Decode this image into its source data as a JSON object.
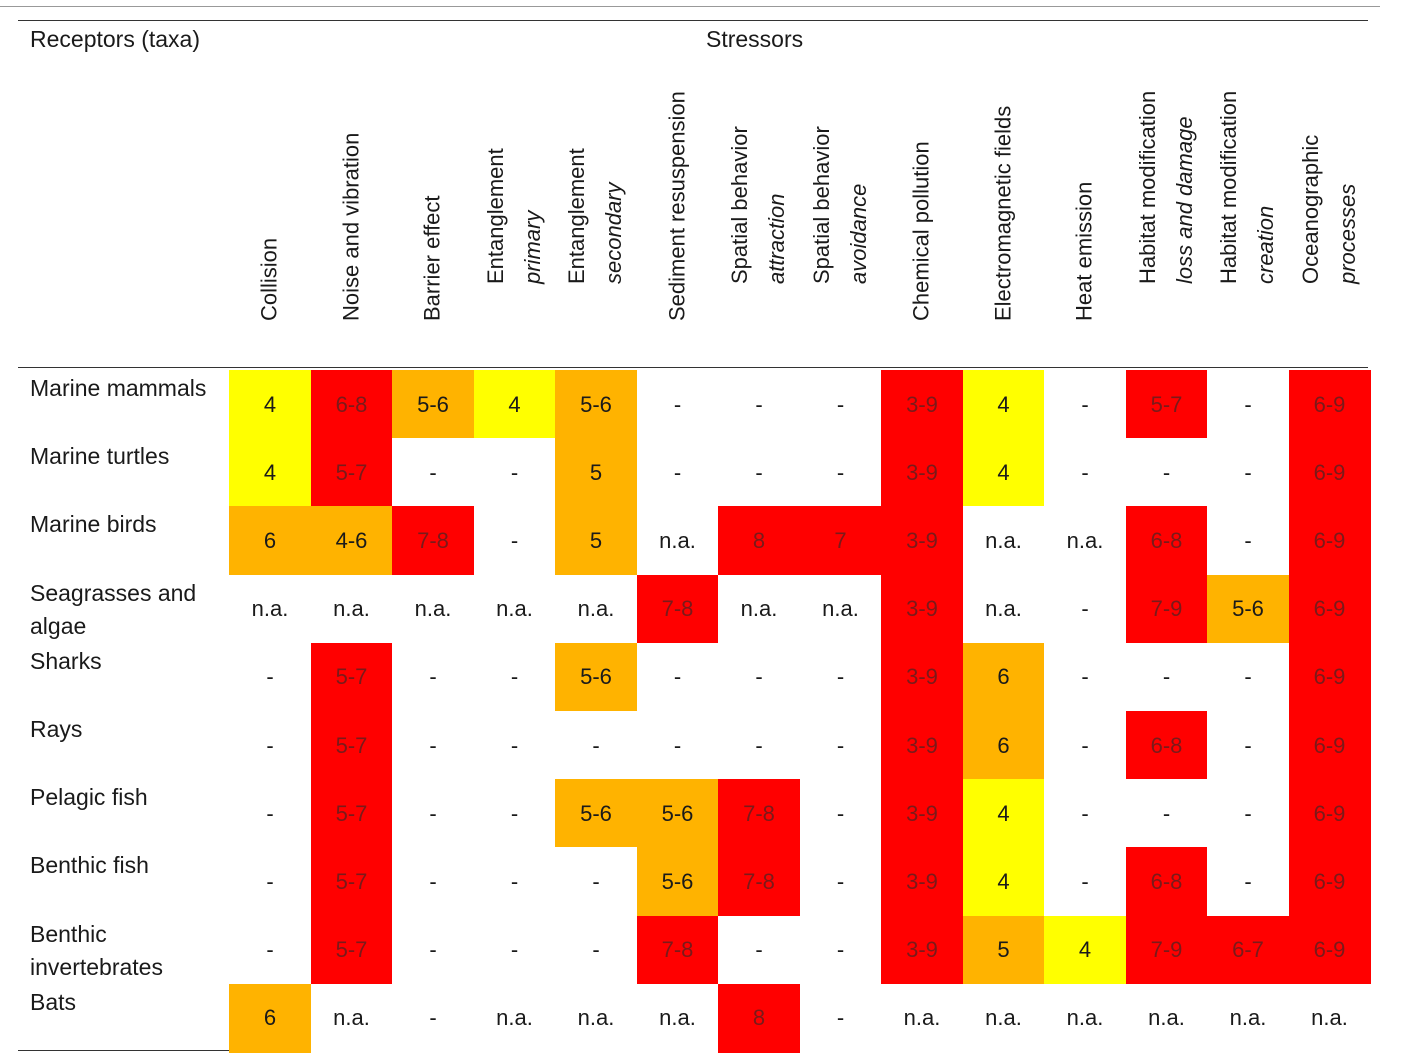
{
  "header": {
    "receptors": "Receptors (taxa)",
    "stressors": "Stressors"
  },
  "stressors": [
    {
      "line1": "Collision",
      "line2": ""
    },
    {
      "line1": "Noise and vibration",
      "line2": ""
    },
    {
      "line1": "Barrier effect",
      "line2": ""
    },
    {
      "line1": "Entanglement",
      "line2": "primary"
    },
    {
      "line1": "Entanglement",
      "line2": "secondary"
    },
    {
      "line1": "Sediment resuspension",
      "line2": ""
    },
    {
      "line1": "Spatial behavior",
      "line2": "attraction"
    },
    {
      "line1": "Spatial behavior",
      "line2": "avoidance"
    },
    {
      "line1": "Chemical pollution",
      "line2": ""
    },
    {
      "line1": "Electromagnetic fields",
      "line2": ""
    },
    {
      "line1": "Heat emission",
      "line2": ""
    },
    {
      "line1": "Habitat modification",
      "line2": "loss and damage"
    },
    {
      "line1": "Habitat modification",
      "line2": "creation"
    },
    {
      "line1": "Oceanographic",
      "line2": "processes"
    }
  ],
  "colors": {
    "R": "#ff0000",
    "O": "#ffb300",
    "Y": "#ffff00",
    "W": "#ffffff"
  },
  "rows": [
    {
      "label": "Marine mammals",
      "values": [
        "4",
        "6-8",
        "5-6",
        "4",
        "5-6",
        "-",
        "-",
        "-",
        "3-9",
        "4",
        "-",
        "5-7",
        "-",
        "6-9"
      ],
      "colors": [
        "Y",
        "R",
        "O",
        "Y",
        "O",
        "W",
        "W",
        "W",
        "R",
        "Y",
        "W",
        "R",
        "W",
        "R"
      ]
    },
    {
      "label": "Marine turtles",
      "values": [
        "4",
        "5-7",
        "-",
        "-",
        "5",
        "-",
        "-",
        "-",
        "3-9",
        "4",
        "-",
        "-",
        "-",
        "6-9"
      ],
      "colors": [
        "Y",
        "R",
        "W",
        "W",
        "O",
        "W",
        "W",
        "W",
        "R",
        "Y",
        "W",
        "W",
        "W",
        "R"
      ]
    },
    {
      "label": "Marine birds",
      "values": [
        "6",
        "4-6",
        "7-8",
        "-",
        "5",
        "n.a.",
        "8",
        "7",
        "3-9",
        "n.a.",
        "n.a.",
        "6-8",
        "-",
        "6-9"
      ],
      "colors": [
        "O",
        "O",
        "R",
        "W",
        "O",
        "W",
        "R",
        "R",
        "R",
        "W",
        "W",
        "R",
        "W",
        "R"
      ]
    },
    {
      "label": "Seagrasses and algae",
      "values": [
        "n.a.",
        "n.a.",
        "n.a.",
        "n.a.",
        "n.a.",
        "7-8",
        "n.a.",
        "n.a.",
        "3-9",
        "n.a.",
        "-",
        "7-9",
        "5-6",
        "6-9"
      ],
      "colors": [
        "W",
        "W",
        "W",
        "W",
        "W",
        "R",
        "W",
        "W",
        "R",
        "W",
        "W",
        "R",
        "O",
        "R"
      ]
    },
    {
      "label": "Sharks",
      "values": [
        "-",
        "5-7",
        "-",
        "-",
        "5-6",
        "-",
        "-",
        "-",
        "3-9",
        "6",
        "-",
        "-",
        "-",
        "6-9"
      ],
      "colors": [
        "W",
        "R",
        "W",
        "W",
        "O",
        "W",
        "W",
        "W",
        "R",
        "O",
        "W",
        "W",
        "W",
        "R"
      ]
    },
    {
      "label": "Rays",
      "values": [
        "-",
        "5-7",
        "-",
        "-",
        "-",
        "-",
        "-",
        "-",
        "3-9",
        "6",
        "-",
        "6-8",
        "-",
        "6-9"
      ],
      "colors": [
        "W",
        "R",
        "W",
        "W",
        "W",
        "W",
        "W",
        "W",
        "R",
        "O",
        "W",
        "R",
        "W",
        "R"
      ]
    },
    {
      "label": "Pelagic fish",
      "values": [
        "-",
        "5-7",
        "-",
        "-",
        "5-6",
        "5-6",
        "7-8",
        "-",
        "3-9",
        "4",
        "-",
        "-",
        "-",
        "6-9"
      ],
      "colors": [
        "W",
        "R",
        "W",
        "W",
        "O",
        "O",
        "R",
        "W",
        "R",
        "Y",
        "W",
        "W",
        "W",
        "R"
      ]
    },
    {
      "label": "Benthic fish",
      "values": [
        "-",
        "5-7",
        "-",
        "-",
        "-",
        "5-6",
        "7-8",
        "-",
        "3-9",
        "4",
        "-",
        "6-8",
        "-",
        "6-9"
      ],
      "colors": [
        "W",
        "R",
        "W",
        "W",
        "W",
        "O",
        "R",
        "W",
        "R",
        "Y",
        "W",
        "R",
        "W",
        "R"
      ]
    },
    {
      "label": "Benthic invertebrates",
      "values": [
        "-",
        "5-7",
        "-",
        "-",
        "-",
        "7-8",
        "-",
        "-",
        "3-9",
        "5",
        "4",
        "7-9",
        "6-7",
        "6-9"
      ],
      "colors": [
        "W",
        "R",
        "W",
        "W",
        "W",
        "R",
        "W",
        "W",
        "R",
        "O",
        "Y",
        "R",
        "R",
        "R"
      ]
    },
    {
      "label": "Bats",
      "values": [
        "6",
        "n.a.",
        "-",
        "n.a.",
        "n.a.",
        "n.a.",
        "8",
        "-",
        "n.a.",
        "n.a.",
        "n.a.",
        "n.a.",
        "n.a.",
        "n.a."
      ],
      "colors": [
        "O",
        "W",
        "W",
        "W",
        "W",
        "W",
        "R",
        "W",
        "W",
        "W",
        "W",
        "W",
        "W",
        "W"
      ]
    }
  ]
}
